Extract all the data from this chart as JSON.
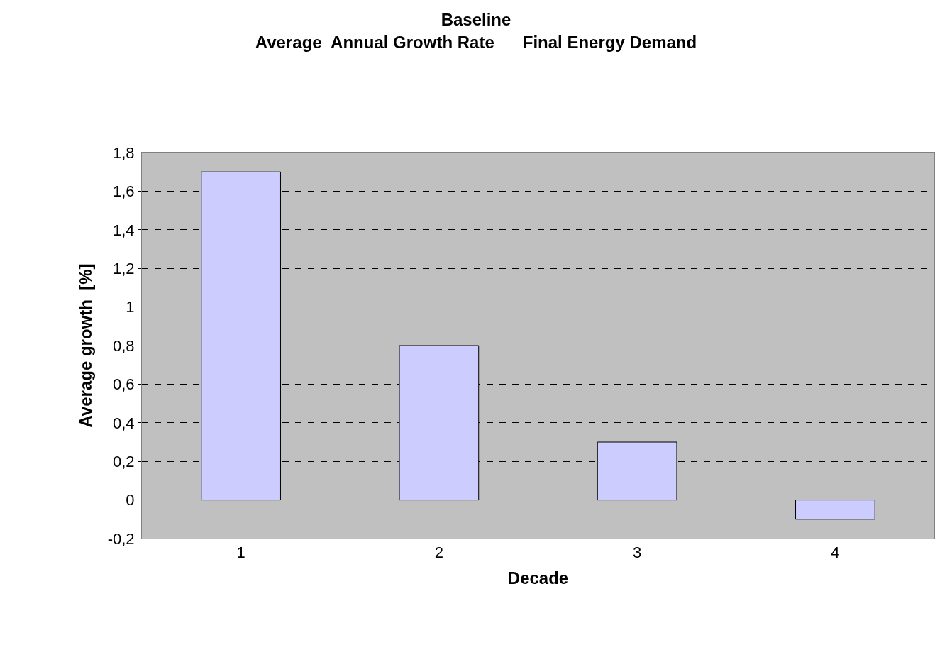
{
  "chart_data": {
    "type": "bar",
    "title": "Baseline",
    "subtitle": "Average  Annual Growth Rate      Final Energy Demand",
    "xlabel": "Decade",
    "ylabel": "Average growth  [%]",
    "categories": [
      "1",
      "2",
      "3",
      "4"
    ],
    "values": [
      1.7,
      0.8,
      0.3,
      -0.1
    ],
    "color": "#ccccff",
    "ylim": [
      -0.2,
      1.8
    ],
    "yticks": [
      {
        "value": -0.2,
        "label": "-0,2"
      },
      0,
      {
        "value": 0.2,
        "label": "0,2"
      },
      {
        "value": 0.4,
        "label": "0,4"
      },
      {
        "value": 0.6,
        "label": "0,6"
      },
      {
        "value": 0.8,
        "label": "0,8"
      },
      1,
      {
        "value": 1.2,
        "label": "1,2"
      },
      {
        "value": 1.4,
        "label": "1,4"
      },
      {
        "value": 1.6,
        "label": "1,6"
      },
      {
        "value": 1.8,
        "label": "1,8"
      }
    ],
    "grid": "y"
  }
}
